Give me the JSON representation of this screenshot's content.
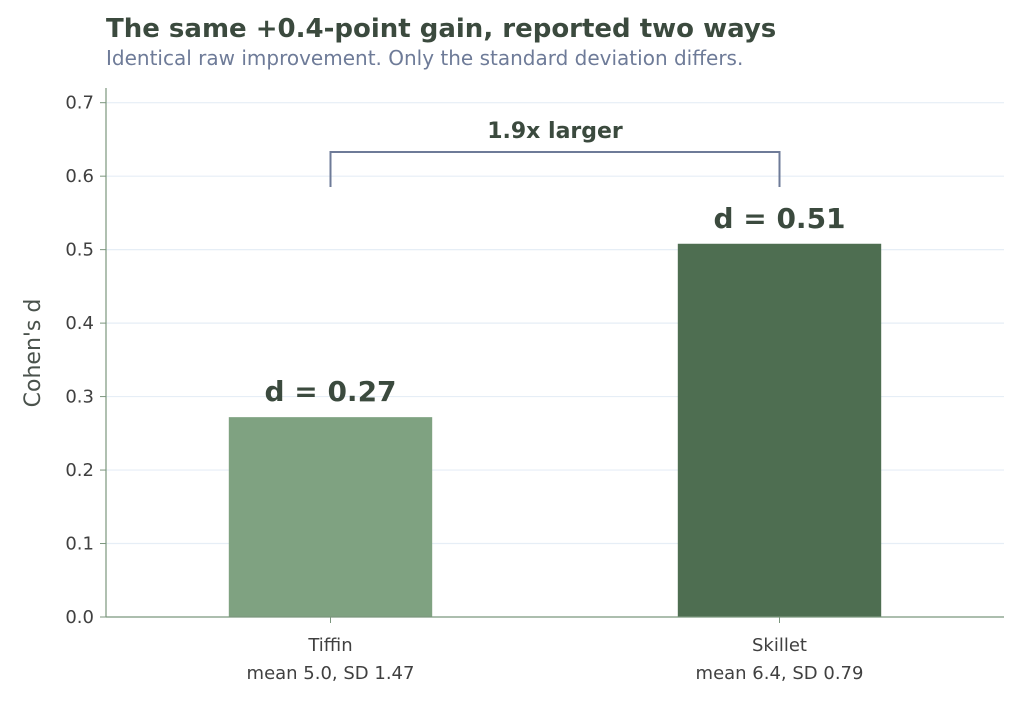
{
  "chart_data": {
    "type": "bar",
    "title": "The same +0.4-point gain, reported two ways",
    "subtitle": "Identical raw improvement. Only the standard deviation differs.",
    "ylabel": "Cohen's d",
    "xlabel": "",
    "ylim": [
      0,
      0.72
    ],
    "yticks": [
      "0.0",
      "0.1",
      "0.2",
      "0.3",
      "0.4",
      "0.5",
      "0.6",
      "0.7"
    ],
    "grid": true,
    "categories": [
      "Tiffin",
      "Skillet"
    ],
    "category_sublabels": [
      "mean 5.0,  SD 1.47",
      "mean 6.4,  SD 0.79"
    ],
    "values": [
      0.272,
      0.508
    ],
    "data_labels": [
      "d = 0.27",
      "d = 0.51"
    ],
    "bar_colors": [
      "#7fa281",
      "#4e6e51"
    ],
    "annotation": {
      "label": "1.9x larger",
      "from": "Tiffin",
      "to": "Skillet"
    },
    "colors": {
      "grid": "#e6eef6",
      "axis": "#7b967d",
      "bracket": "#6e7b98",
      "text": "#3b4a3e"
    }
  }
}
